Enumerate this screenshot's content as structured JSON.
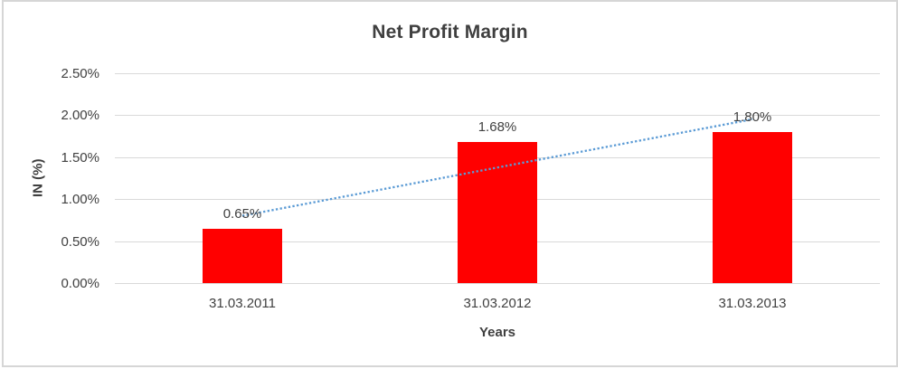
{
  "chart_data": {
    "type": "bar",
    "title": "Net Profit Margin",
    "xlabel": "Years",
    "ylabel": "IN (%)",
    "categories": [
      "31.03.2011",
      "31.03.2012",
      "31.03.2013"
    ],
    "values": [
      0.65,
      1.68,
      1.8
    ],
    "data_labels": [
      "0.65%",
      "1.68%",
      "1.80%"
    ],
    "ytick_values": [
      0.0,
      0.5,
      1.0,
      1.5,
      2.0,
      2.5
    ],
    "ytick_labels": [
      "0.00%",
      "0.50%",
      "1.00%",
      "1.50%",
      "2.00%",
      "2.50%"
    ],
    "ylim": [
      0,
      2.5
    ],
    "grid": true,
    "legend": "none",
    "trendline": {
      "type": "linear",
      "style": "dotted"
    },
    "colors": {
      "bar": "#ff0000",
      "trendline": "#5b9bd5",
      "gridline": "#d9d9d9",
      "text": "#404040",
      "title_text": "#3f3f3f",
      "frame_border": "#d6d6d6",
      "background": "#ffffff"
    }
  }
}
